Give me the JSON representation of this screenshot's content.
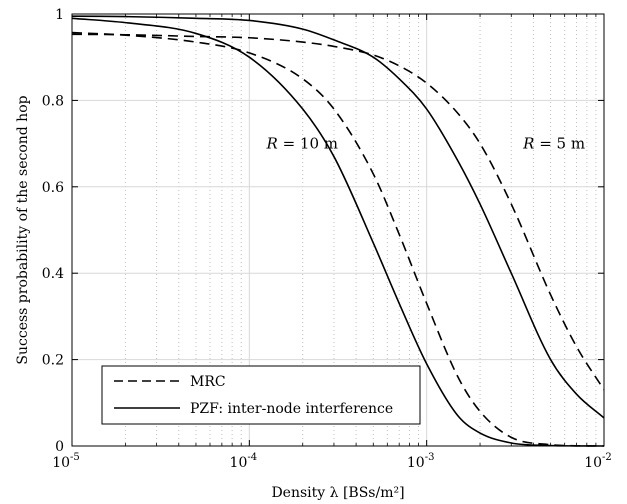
{
  "chart_data": {
    "type": "line",
    "xlabel": "Density λ [BSs/m²]",
    "ylabel": "Success probability of the second hop",
    "xscale": "log",
    "xlim": [
      1e-05,
      0.01
    ],
    "ylim": [
      0,
      1
    ],
    "grid": true,
    "legend_position": "bottom-left",
    "xticks": [
      {
        "value": 1e-05,
        "base": "10",
        "exp": "-5"
      },
      {
        "value": 0.0001,
        "base": "10",
        "exp": "-4"
      },
      {
        "value": 0.001,
        "base": "10",
        "exp": "-3"
      },
      {
        "value": 0.01,
        "base": "10",
        "exp": "-2"
      }
    ],
    "yticks": [
      "0",
      "0.2",
      "0.4",
      "0.6",
      "0.8",
      "1"
    ],
    "x": [
      1e-05,
      2e-05,
      5e-05,
      0.0001,
      0.0002,
      0.0003,
      0.0005,
      0.0007,
      0.001,
      0.0015,
      0.002,
      0.003,
      0.005,
      0.007,
      0.01
    ],
    "series": [
      {
        "name": "MRC",
        "style": "dashed",
        "annotation": "R=10 m",
        "values": [
          0.957,
          0.951,
          0.935,
          0.91,
          0.85,
          0.78,
          0.63,
          0.49,
          0.33,
          0.16,
          0.08,
          0.02,
          0.003,
          0.0005,
          0.0
        ]
      },
      {
        "name": "PZF: inter-node interference",
        "style": "solid",
        "annotation": "R=10 m",
        "values": [
          0.99,
          0.98,
          0.955,
          0.9,
          0.78,
          0.67,
          0.47,
          0.33,
          0.19,
          0.07,
          0.03,
          0.007,
          0.001,
          0.0002,
          0.0
        ]
      },
      {
        "name": "MRC",
        "style": "dashed",
        "annotation": "R=5 m",
        "values": [
          0.953,
          0.952,
          0.948,
          0.945,
          0.935,
          0.925,
          0.905,
          0.88,
          0.84,
          0.77,
          0.7,
          0.56,
          0.35,
          0.23,
          0.13
        ]
      },
      {
        "name": "PZF: inter-node interference",
        "style": "solid",
        "annotation": "R=5 m",
        "values": [
          0.995,
          0.994,
          0.99,
          0.985,
          0.965,
          0.94,
          0.9,
          0.85,
          0.78,
          0.66,
          0.56,
          0.4,
          0.2,
          0.12,
          0.065
        ]
      }
    ],
    "annotations": [
      {
        "text_lhs": "R",
        "text_rhs": "= 10 m",
        "x": 0.000125,
        "y": 0.7
      },
      {
        "text_lhs": "R",
        "text_rhs": "= 5 m",
        "x": 0.0035,
        "y": 0.7
      }
    ],
    "legend": [
      {
        "label": "MRC",
        "style": "dashed"
      },
      {
        "label": "PZF: inter-node interference",
        "style": "solid"
      }
    ],
    "colors": {
      "lines": "#000000",
      "grid": "#d8d8d8",
      "minor_grid": "#bfbfbf"
    }
  }
}
